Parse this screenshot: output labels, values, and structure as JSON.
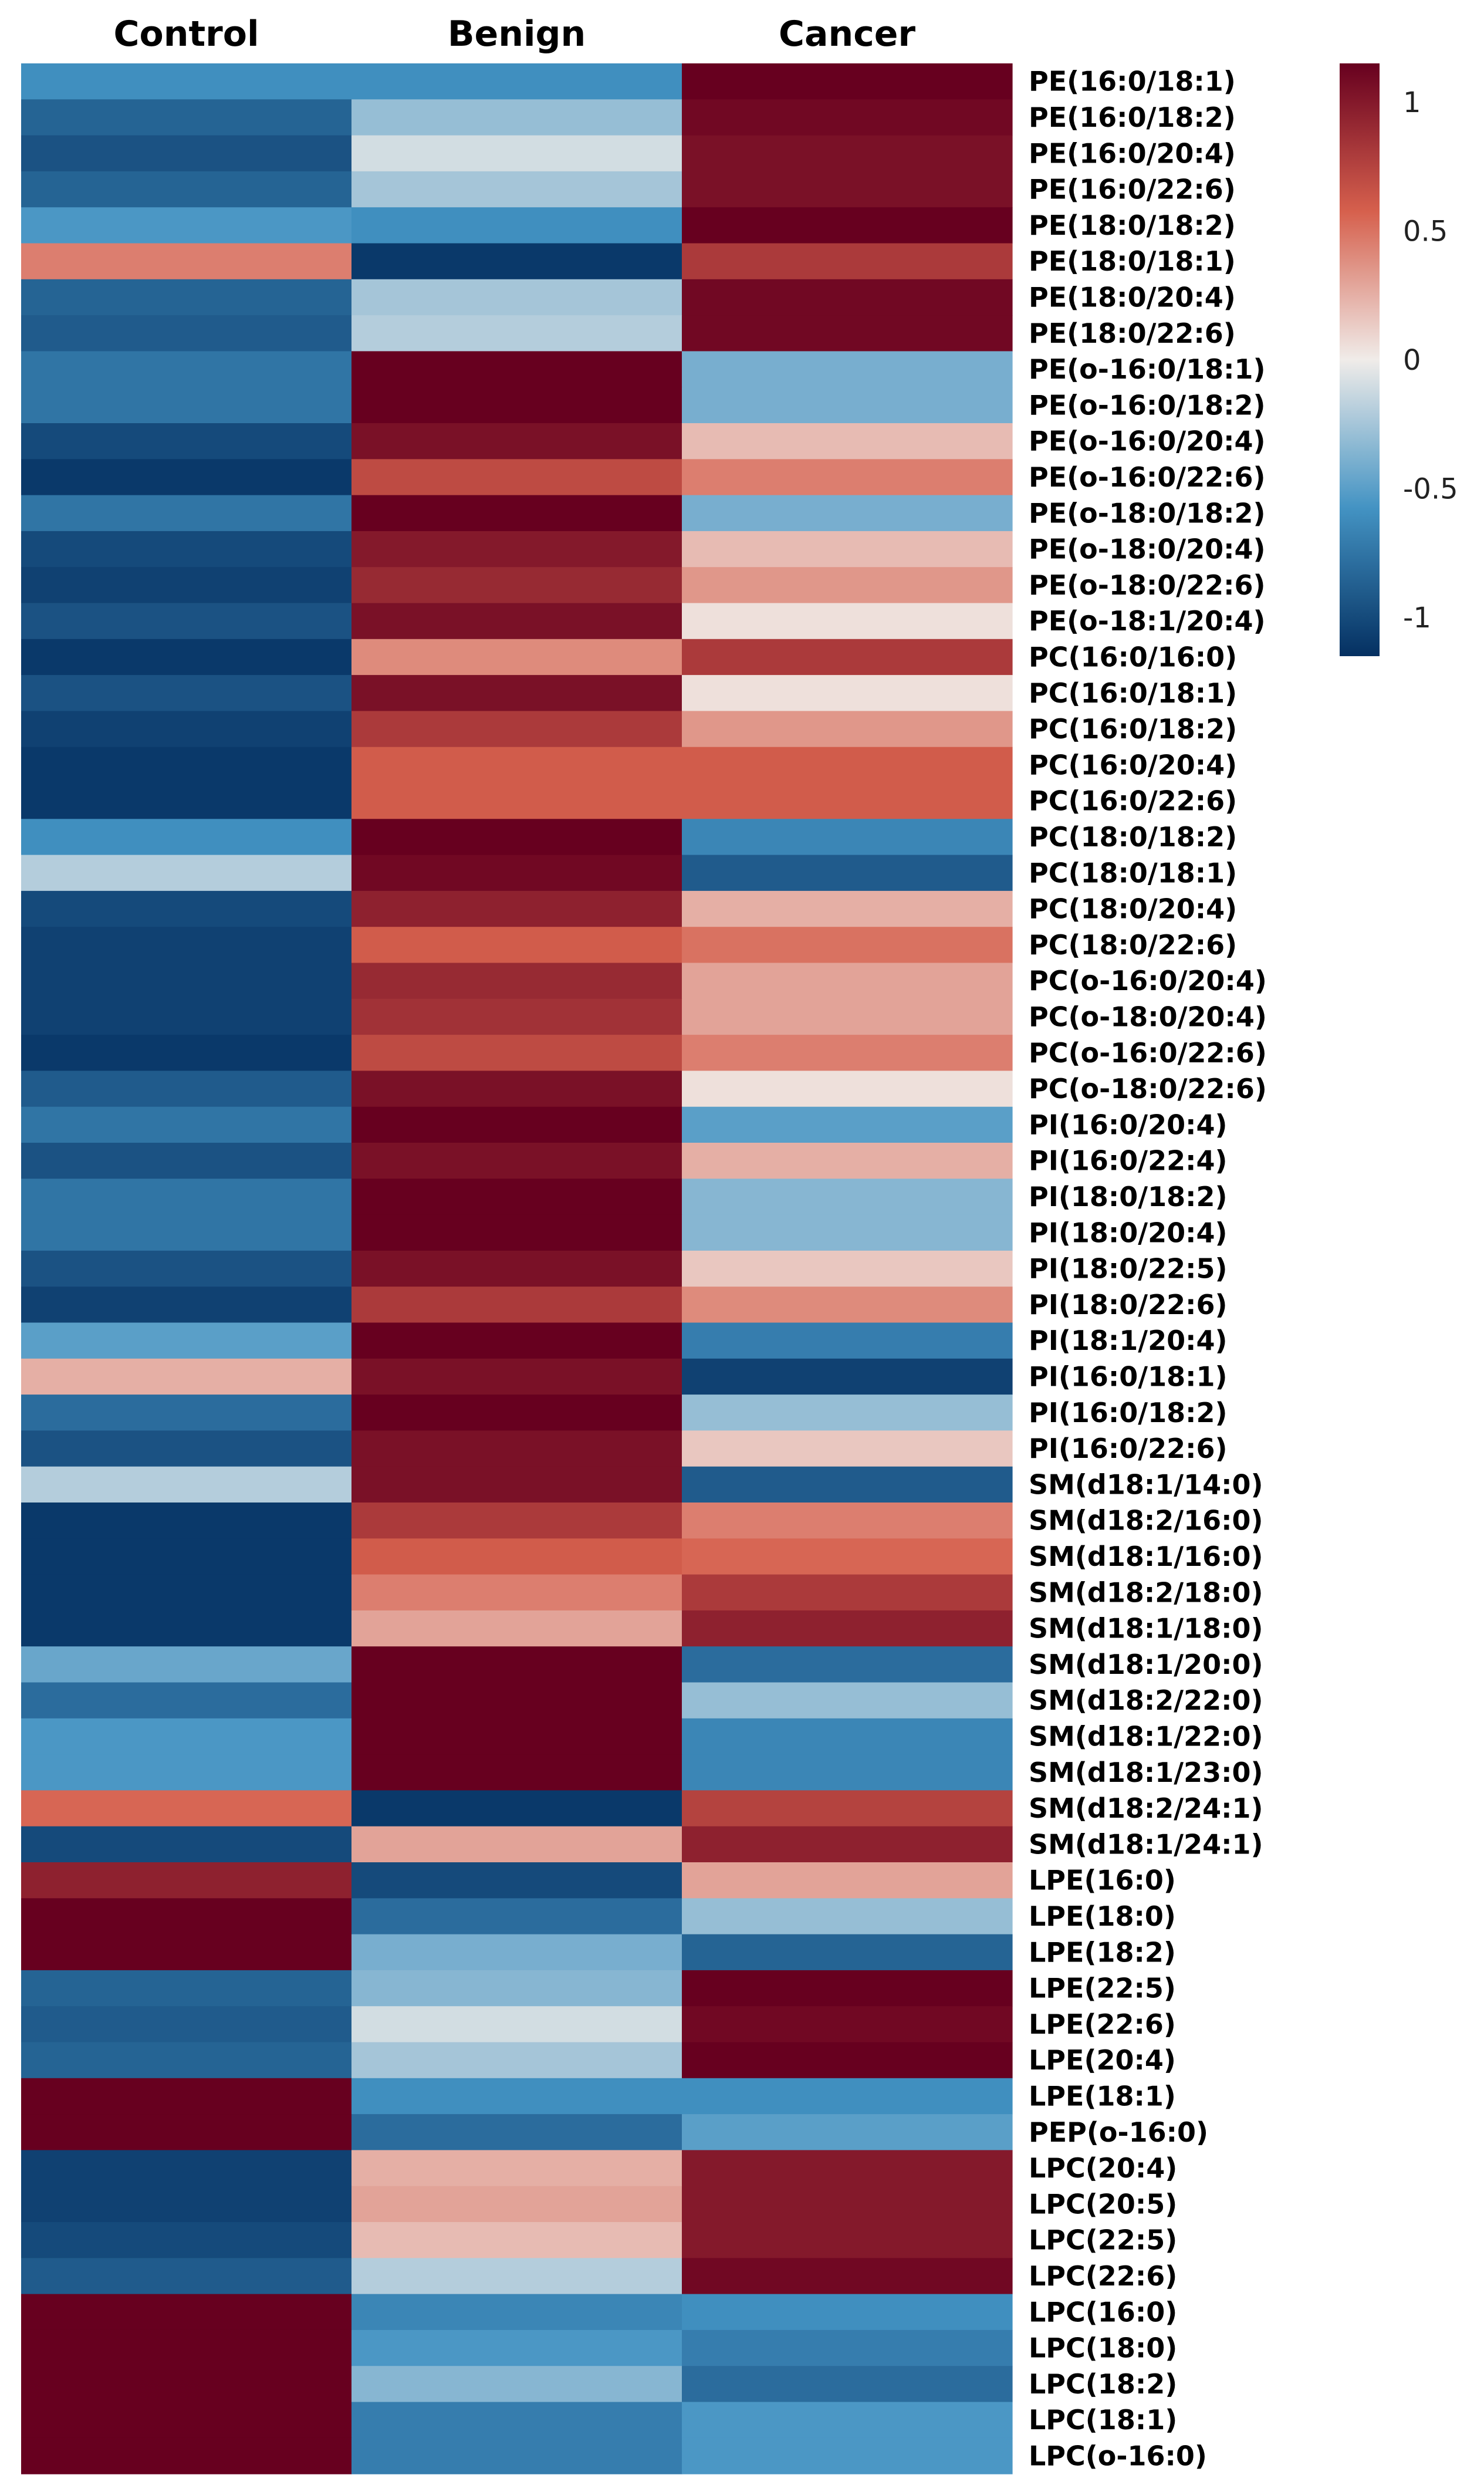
{
  "chart_data": {
    "type": "heatmap",
    "columns": [
      "Control",
      "Benign",
      "Cancer"
    ],
    "rows": [
      "PE(16:0/18:1)",
      "PE(16:0/18:2)",
      "PE(16:0/20:4)",
      "PE(16:0/22:6)",
      "PE(18:0/18:2)",
      "PE(18:0/18:1)",
      "PE(18:0/20:4)",
      "PE(18:0/22:6)",
      "PE(o-16:0/18:1)",
      "PE(o-16:0/18:2)",
      "PE(o-16:0/20:4)",
      "PE(o-16:0/22:6)",
      "PE(o-18:0/18:2)",
      "PE(o-18:0/20:4)",
      "PE(o-18:0/22:6)",
      "PE(o-18:1/20:4)",
      "PC(16:0/16:0)",
      "PC(16:0/18:1)",
      "PC(16:0/18:2)",
      "PC(16:0/20:4)",
      "PC(16:0/22:6)",
      "PC(18:0/18:2)",
      "PC(18:0/18:1)",
      "PC(18:0/20:4)",
      "PC(18:0/22:6)",
      "PC(o-16:0/20:4)",
      "PC(o-18:0/20:4)",
      "PC(o-16:0/22:6)",
      "PC(o-18:0/22:6)",
      "PI(16:0/20:4)",
      "PI(16:0/22:4)",
      "PI(18:0/18:2)",
      "PI(18:0/20:4)",
      "PI(18:0/22:5)",
      "PI(18:0/22:6)",
      "PI(18:1/20:4)",
      "PI(16:0/18:1)",
      "PI(16:0/18:2)",
      "PI(16:0/22:6)",
      "SM(d18:1/14:0)",
      "SM(d18:2/16:0)",
      "SM(d18:1/16:0)",
      "SM(d18:2/18:0)",
      "SM(d18:1/18:0)",
      "SM(d18:1/20:0)",
      "SM(d18:2/22:0)",
      "SM(d18:1/22:0)",
      "SM(d18:1/23:0)",
      "SM(d18:2/24:1)",
      "SM(d18:1/24:1)",
      "LPE(16:0)",
      "LPE(18:0)",
      "LPE(18:2)",
      "LPE(22:5)",
      "LPE(22:6)",
      "LPE(20:4)",
      "LPE(18:1)",
      "PEP(o-16:0)",
      "LPC(20:4)",
      "LPC(20:5)",
      "LPC(22:5)",
      "LPC(22:6)",
      "LPC(16:0)",
      "LPC(18:0)",
      "LPC(18:2)",
      "LPC(18:1)",
      "LPC(o-16:0)"
    ],
    "values": [
      [
        -0.6,
        -0.6,
        1.15
      ],
      [
        -0.85,
        -0.3,
        1.1
      ],
      [
        -0.95,
        -0.1,
        1.05
      ],
      [
        -0.85,
        -0.25,
        1.05
      ],
      [
        -0.55,
        -0.6,
        1.15
      ],
      [
        0.45,
        -1.1,
        0.8
      ],
      [
        -0.85,
        -0.25,
        1.1
      ],
      [
        -0.9,
        -0.2,
        1.1
      ],
      [
        -0.75,
        1.15,
        -0.4
      ],
      [
        -0.75,
        1.15,
        -0.4
      ],
      [
        -1.0,
        1.05,
        0.2
      ],
      [
        -1.1,
        0.7,
        0.45
      ],
      [
        -0.75,
        1.15,
        -0.4
      ],
      [
        -1.0,
        1.0,
        0.2
      ],
      [
        -1.05,
        0.9,
        0.35
      ],
      [
        -0.95,
        1.05,
        0.05
      ],
      [
        -1.1,
        0.4,
        0.8
      ],
      [
        -0.95,
        1.05,
        0.05
      ],
      [
        -1.05,
        0.8,
        0.35
      ],
      [
        -1.1,
        0.6,
        0.6
      ],
      [
        -1.1,
        0.6,
        0.6
      ],
      [
        -0.6,
        1.15,
        -0.65
      ],
      [
        -0.2,
        1.1,
        -0.9
      ],
      [
        -1.0,
        0.95,
        0.25
      ],
      [
        -1.05,
        0.6,
        0.5
      ],
      [
        -1.05,
        0.9,
        0.3
      ],
      [
        -1.05,
        0.85,
        0.3
      ],
      [
        -1.1,
        0.7,
        0.45
      ],
      [
        -0.9,
        1.05,
        0.05
      ],
      [
        -0.75,
        1.15,
        -0.5
      ],
      [
        -0.95,
        1.05,
        0.25
      ],
      [
        -0.75,
        1.15,
        -0.35
      ],
      [
        -0.75,
        1.15,
        -0.35
      ],
      [
        -0.95,
        1.05,
        0.15
      ],
      [
        -1.05,
        0.8,
        0.4
      ],
      [
        -0.5,
        1.15,
        -0.7
      ],
      [
        0.25,
        1.05,
        -1.05
      ],
      [
        -0.8,
        1.15,
        -0.3
      ],
      [
        -0.95,
        1.05,
        0.15
      ],
      [
        -0.2,
        1.05,
        -0.9
      ],
      [
        -1.1,
        0.8,
        0.45
      ],
      [
        -1.1,
        0.6,
        0.55
      ],
      [
        -1.1,
        0.45,
        0.8
      ],
      [
        -1.1,
        0.3,
        0.95
      ],
      [
        -0.45,
        1.15,
        -0.8
      ],
      [
        -0.8,
        1.15,
        -0.3
      ],
      [
        -0.55,
        1.15,
        -0.65
      ],
      [
        -0.55,
        1.15,
        -0.65
      ],
      [
        0.55,
        -1.1,
        0.75
      ],
      [
        -1.0,
        0.3,
        0.95
      ],
      [
        0.95,
        -1.0,
        0.3
      ],
      [
        1.15,
        -0.8,
        -0.3
      ],
      [
        1.15,
        -0.4,
        -0.85
      ],
      [
        -0.85,
        -0.35,
        1.15
      ],
      [
        -0.9,
        -0.1,
        1.1
      ],
      [
        -0.85,
        -0.25,
        1.15
      ],
      [
        1.15,
        -0.6,
        -0.6
      ],
      [
        1.15,
        -0.8,
        -0.5
      ],
      [
        -1.05,
        0.25,
        1.0
      ],
      [
        -1.05,
        0.3,
        1.0
      ],
      [
        -1.0,
        0.2,
        1.0
      ],
      [
        -0.9,
        -0.2,
        1.1
      ],
      [
        1.15,
        -0.65,
        -0.6
      ],
      [
        1.15,
        -0.55,
        -0.7
      ],
      [
        1.15,
        -0.35,
        -0.8
      ],
      [
        1.15,
        -0.7,
        -0.55
      ],
      [
        1.15,
        -0.7,
        -0.55
      ]
    ],
    "colorbar": {
      "ticks": [
        1,
        0.5,
        0,
        -0.5,
        -1
      ],
      "tick_labels": [
        "1",
        "0.5",
        "0",
        "-0.5",
        "-1"
      ],
      "range": [
        -1.15,
        1.15
      ]
    },
    "colors": {
      "high": "#67001f",
      "mid_high": "#d6604d",
      "neutral": "#f0ece9",
      "mid_low": "#4393c3",
      "low": "#053061"
    },
    "legend_position": "top-right"
  }
}
